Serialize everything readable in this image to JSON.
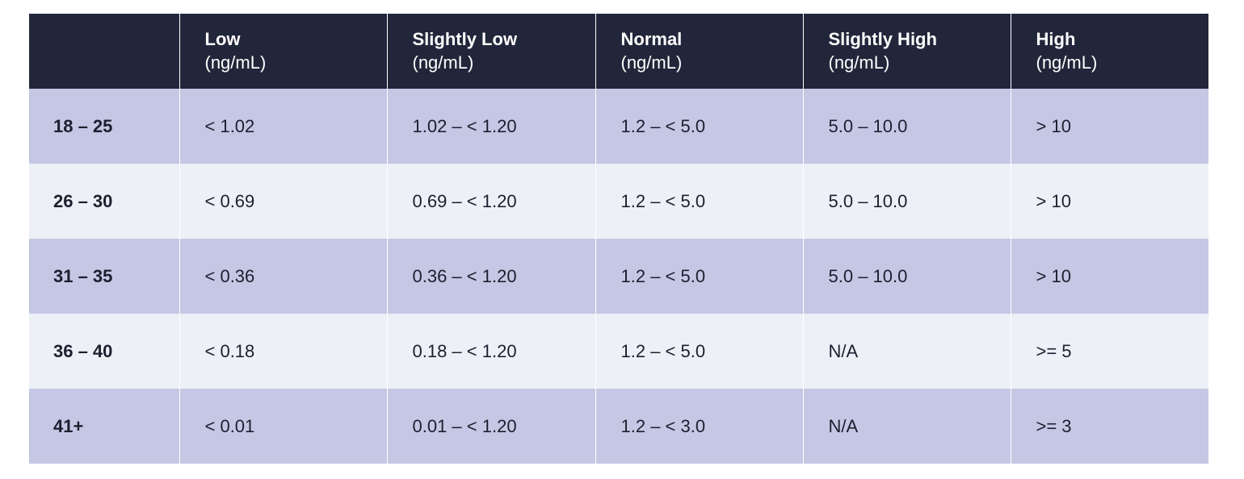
{
  "table": {
    "columns": [
      {
        "name": "Low",
        "unit": "(ng/mL)"
      },
      {
        "name": "Slightly Low",
        "unit": "(ng/mL)"
      },
      {
        "name": "Normal",
        "unit": "(ng/mL)"
      },
      {
        "name": "Slightly High",
        "unit": "(ng/mL)"
      },
      {
        "name": "High",
        "unit": "(ng/mL)"
      }
    ],
    "rows": [
      {
        "label": "18 – 25",
        "cells": [
          "< 1.02",
          "1.02 – < 1.20",
          "1.2 – < 5.0",
          "5.0 – 10.0",
          "> 10"
        ]
      },
      {
        "label": "26 – 30",
        "cells": [
          "< 0.69",
          "0.69 – < 1.20",
          "1.2 – < 5.0",
          "5.0 – 10.0",
          "> 10"
        ]
      },
      {
        "label": "31 – 35",
        "cells": [
          "< 0.36",
          "0.36 – < 1.20",
          "1.2 – < 5.0",
          "5.0 – 10.0",
          "> 10"
        ]
      },
      {
        "label": "36 – 40",
        "cells": [
          "< 0.18",
          "0.18 – < 1.20",
          "1.2 – < 5.0",
          "N/A",
          ">= 5"
        ]
      },
      {
        "label": "41+",
        "cells": [
          "< 0.01",
          "0.01 – < 1.20",
          "1.2 – < 3.0",
          "N/A",
          ">= 3"
        ]
      }
    ]
  }
}
